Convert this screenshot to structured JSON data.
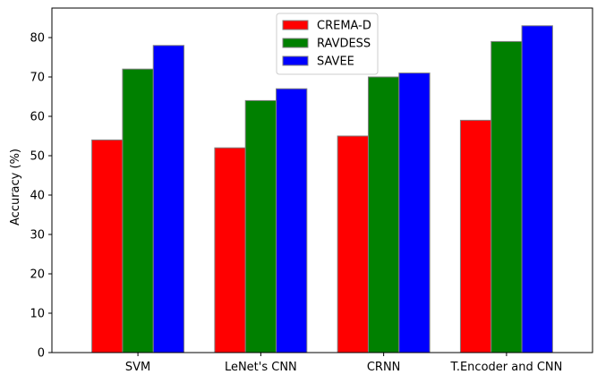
{
  "chart_data": {
    "type": "bar",
    "title": "",
    "xlabel": "",
    "ylabel": "Accuracy (%)",
    "ylim": [
      0,
      87.5
    ],
    "yticks": [
      0,
      10,
      20,
      30,
      40,
      50,
      60,
      70,
      80
    ],
    "categories": [
      "SVM",
      "LeNet's CNN",
      "CRNN",
      "T.Encoder and CNN"
    ],
    "series": [
      {
        "name": "CREMA-D",
        "color": "#ff0000",
        "values": [
          54,
          52,
          55,
          59
        ]
      },
      {
        "name": "RAVDESS",
        "color": "#008000",
        "values": [
          72,
          64,
          70,
          79
        ]
      },
      {
        "name": "SAVEE",
        "color": "#0000ff",
        "values": [
          78,
          67,
          71,
          83
        ]
      }
    ],
    "grid": false,
    "legend_position": "upper-center"
  }
}
